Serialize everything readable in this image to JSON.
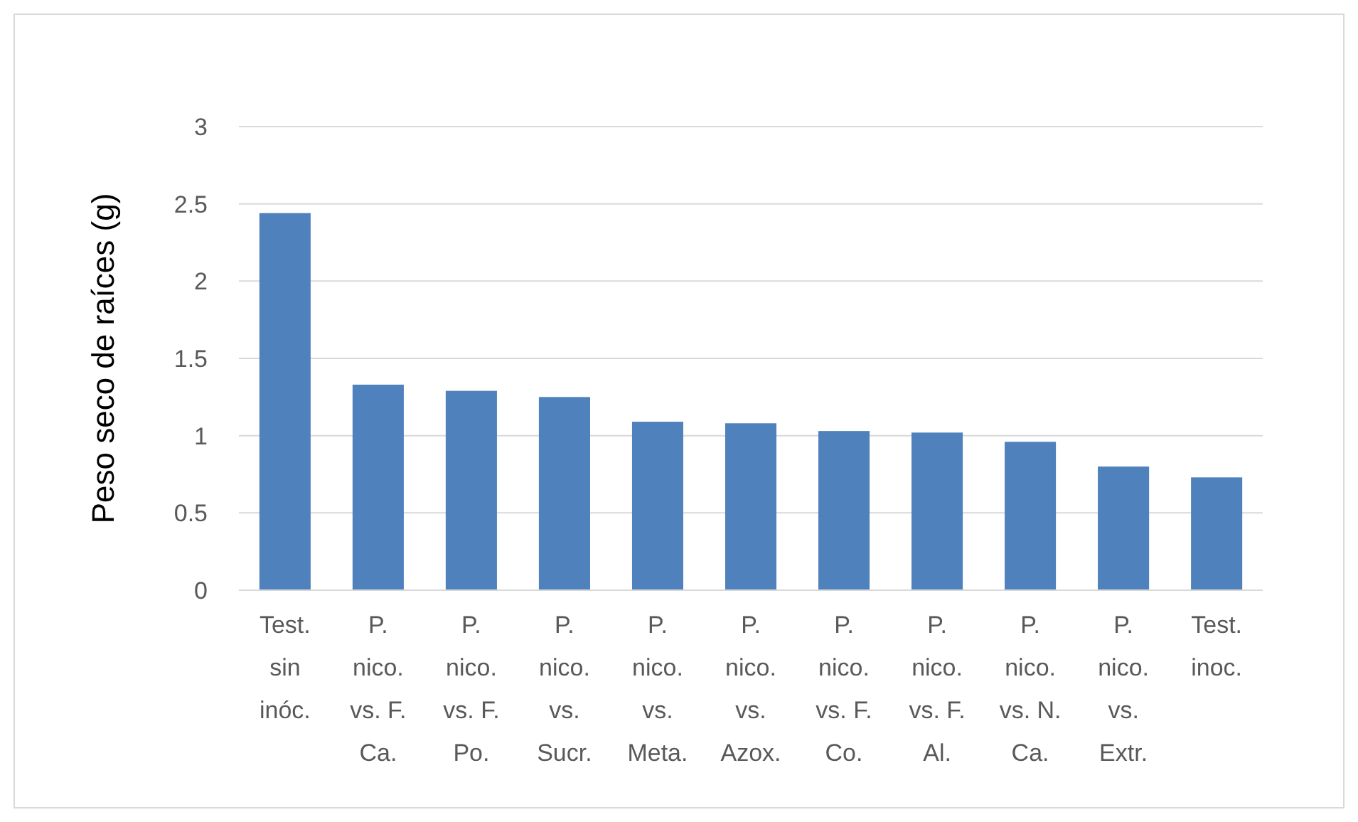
{
  "chart_data": {
    "type": "bar",
    "ylabel": "Peso seco de raíces (g)",
    "categories": [
      "Test. sin inóc.",
      "P. nico. vs. F. Ca.",
      "P. nico. vs. F. Po.",
      "P. nico. vs. Sucr.",
      "P. nico. vs. Meta.",
      "P. nico. vs. Azox.",
      "P. nico. vs. F. Co.",
      "P. nico. vs. F. Al.",
      "P. nico. vs. N. Ca.",
      "P. nico. vs. Extr.",
      "Test. inoc."
    ],
    "values": [
      2.44,
      1.33,
      1.29,
      1.25,
      1.09,
      1.08,
      1.03,
      1.02,
      0.96,
      0.8,
      0.73
    ],
    "color": "#4f81bd",
    "ylim": [
      0,
      3
    ],
    "yticks": [
      0,
      0.5,
      1,
      1.5,
      2,
      2.5,
      3
    ],
    "grid": "y"
  }
}
